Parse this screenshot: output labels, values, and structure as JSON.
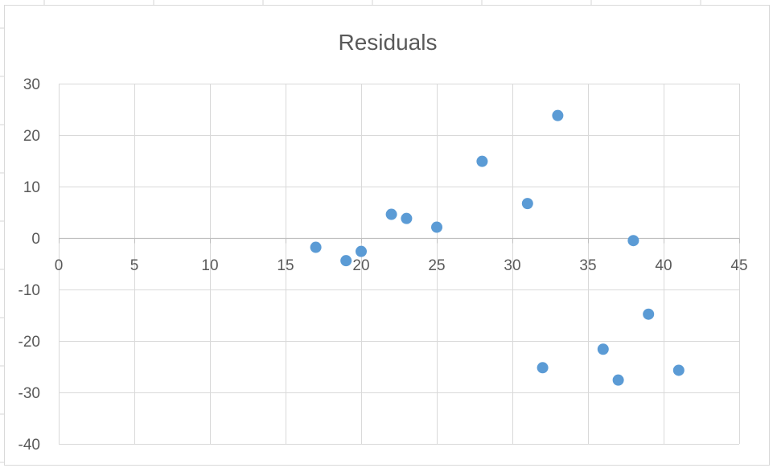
{
  "chart_data": {
    "type": "scatter",
    "title": "Residuals",
    "xlabel": "",
    "ylabel": "",
    "xlim": [
      0,
      45
    ],
    "ylim": [
      -40,
      30
    ],
    "x_ticks": [
      0,
      5,
      10,
      15,
      20,
      25,
      30,
      35,
      40,
      45
    ],
    "y_ticks": [
      30,
      20,
      10,
      0,
      -10,
      -20,
      -30,
      -40
    ],
    "grid": true,
    "legend": "none",
    "series": [
      {
        "color": "#5b9bd5",
        "points": [
          {
            "x": 17,
            "y": -1.8
          },
          {
            "x": 19,
            "y": -4.4
          },
          {
            "x": 20,
            "y": -2.6
          },
          {
            "x": 22,
            "y": 4.6
          },
          {
            "x": 23,
            "y": 3.8
          },
          {
            "x": 25,
            "y": 2.1
          },
          {
            "x": 28,
            "y": 14.9
          },
          {
            "x": 31,
            "y": 6.7
          },
          {
            "x": 32,
            "y": -25.2
          },
          {
            "x": 33,
            "y": 23.8
          },
          {
            "x": 36,
            "y": -21.6
          },
          {
            "x": 37,
            "y": -27.6
          },
          {
            "x": 38,
            "y": -0.5
          },
          {
            "x": 39,
            "y": -14.8
          },
          {
            "x": 41,
            "y": -25.7
          }
        ]
      }
    ]
  },
  "colors": {
    "grid": "#d9d9d9",
    "axis": "#bfbfbf",
    "text": "#595959",
    "border": "#d9d9d9"
  }
}
